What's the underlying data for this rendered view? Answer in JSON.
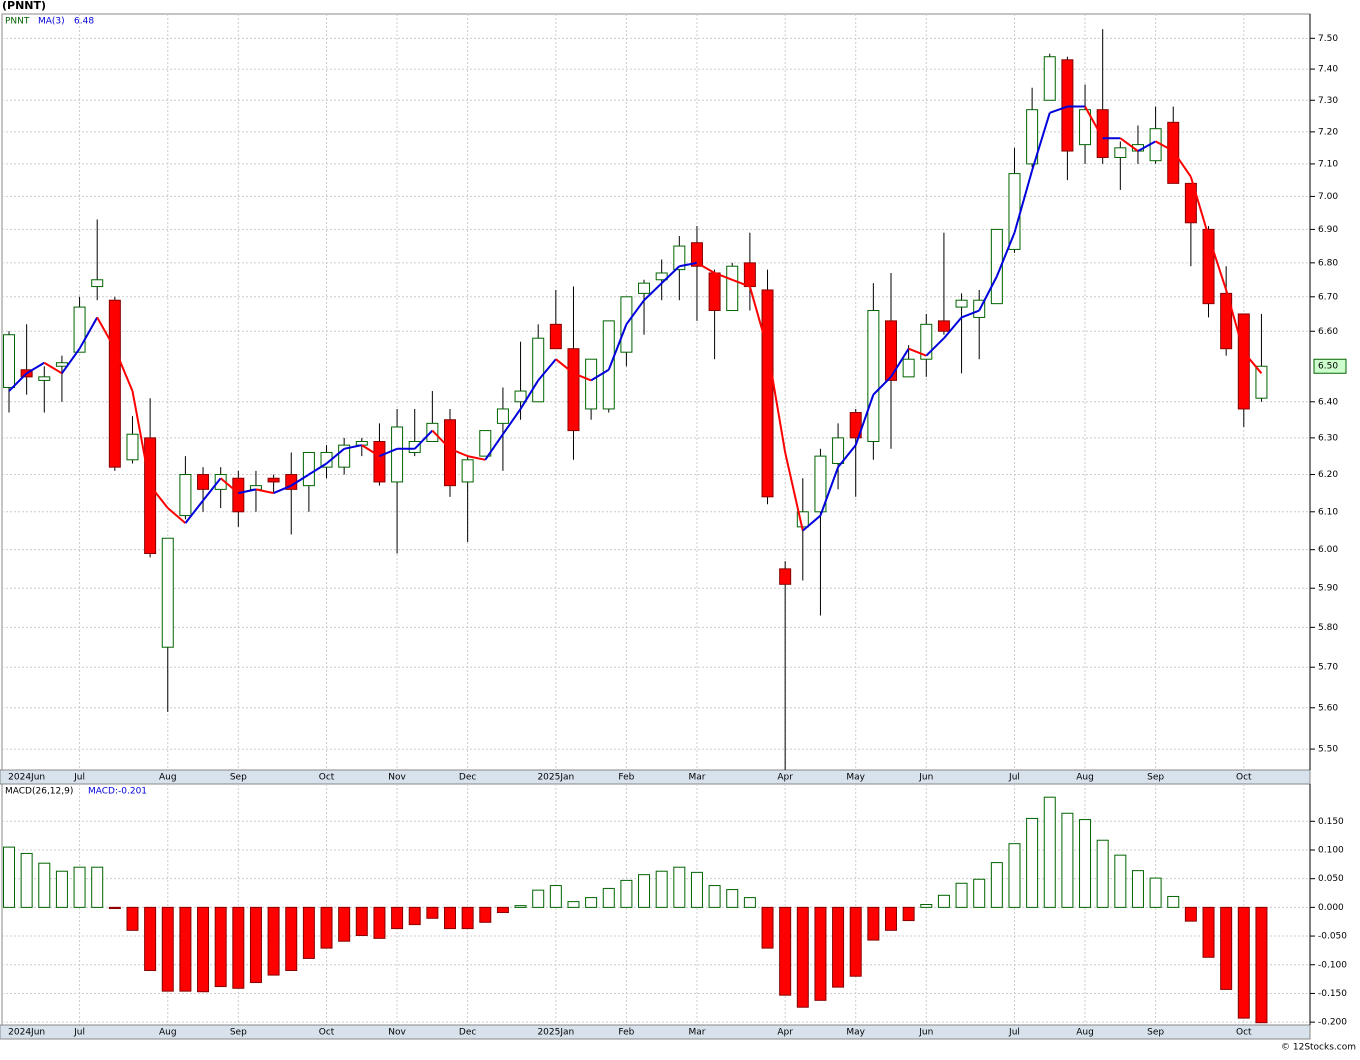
{
  "chart_data": [
    {
      "type": "candlestick",
      "title": "(PNNT)",
      "symbol": "PNNT",
      "categories": [
        null,
        "2024Jun",
        null,
        null,
        "Jul",
        null,
        null,
        null,
        null,
        "Aug",
        null,
        null,
        null,
        "Sep",
        null,
        null,
        null,
        null,
        "Oct",
        null,
        null,
        null,
        "Nov",
        null,
        null,
        null,
        "Dec",
        null,
        null,
        null,
        null,
        "2025Jan",
        null,
        null,
        null,
        "Feb",
        null,
        null,
        null,
        "Mar",
        null,
        null,
        null,
        null,
        "Apr",
        null,
        null,
        null,
        "May",
        null,
        null,
        null,
        "Jun",
        null,
        null,
        null,
        null,
        "Jul",
        null,
        null,
        null,
        "Aug",
        null,
        null,
        null,
        "Sep",
        null,
        null,
        null,
        null,
        "Oct",
        null
      ],
      "open": [
        6.44,
        6.49,
        6.46,
        6.5,
        6.54,
        6.73,
        6.69,
        6.24,
        6.3,
        5.75,
        6.09,
        6.2,
        6.16,
        6.19,
        6.16,
        6.19,
        6.2,
        6.17,
        6.22,
        6.22,
        6.28,
        6.29,
        6.18,
        6.26,
        6.29,
        6.35,
        6.18,
        6.25,
        6.34,
        6.4,
        6.4,
        6.62,
        6.55,
        6.38,
        6.38,
        6.54,
        6.71,
        6.75,
        6.78,
        6.86,
        6.77,
        6.66,
        6.8,
        6.72,
        5.95,
        6.06,
        6.1,
        6.23,
        6.37,
        6.29,
        6.63,
        6.47,
        6.52,
        6.63,
        6.67,
        6.64,
        6.68,
        6.84,
        7.1,
        7.3,
        7.43,
        7.16,
        7.27,
        7.12,
        7.14,
        7.11,
        7.23,
        7.04,
        6.9,
        6.71,
        6.65,
        6.41
      ],
      "high": [
        6.6,
        6.62,
        6.5,
        6.53,
        6.7,
        6.93,
        6.7,
        6.36,
        6.41,
        6.03,
        6.25,
        6.22,
        6.22,
        6.21,
        6.21,
        6.2,
        6.26,
        6.26,
        6.28,
        6.3,
        6.3,
        6.34,
        6.38,
        6.38,
        6.43,
        6.38,
        6.25,
        6.32,
        6.44,
        6.57,
        6.62,
        6.72,
        6.73,
        6.52,
        6.63,
        6.7,
        6.75,
        6.81,
        6.88,
        6.91,
        6.78,
        6.8,
        6.89,
        6.78,
        5.97,
        6.19,
        6.27,
        6.34,
        6.38,
        6.74,
        6.77,
        6.56,
        6.65,
        6.89,
        6.71,
        6.72,
        6.9,
        7.15,
        7.34,
        7.45,
        7.44,
        7.35,
        7.53,
        7.17,
        7.22,
        7.28,
        7.28,
        7.04,
        6.91,
        6.79,
        6.65,
        6.65
      ],
      "low": [
        6.37,
        6.42,
        6.37,
        6.4,
        6.54,
        6.69,
        6.21,
        6.23,
        5.98,
        5.59,
        6.08,
        6.1,
        6.11,
        6.06,
        6.1,
        6.15,
        6.04,
        6.1,
        6.19,
        6.2,
        6.25,
        6.17,
        5.99,
        6.25,
        6.29,
        6.14,
        6.02,
        6.25,
        6.21,
        6.35,
        6.4,
        6.55,
        6.24,
        6.35,
        6.37,
        6.5,
        6.59,
        6.69,
        6.69,
        6.63,
        6.52,
        6.66,
        6.66,
        6.12,
        5.45,
        5.92,
        5.83,
        6.16,
        6.14,
        6.24,
        6.27,
        6.47,
        6.47,
        6.59,
        6.48,
        6.52,
        6.68,
        6.83,
        7.09,
        7.3,
        7.05,
        7.1,
        7.1,
        7.02,
        7.1,
        7.1,
        7.04,
        6.79,
        6.64,
        6.53,
        6.33,
        6.4
      ],
      "close": [
        6.59,
        6.47,
        6.47,
        6.51,
        6.67,
        6.75,
        6.22,
        6.31,
        5.99,
        6.03,
        6.2,
        6.16,
        6.2,
        6.1,
        6.17,
        6.18,
        6.16,
        6.26,
        6.26,
        6.28,
        6.29,
        6.18,
        6.33,
        6.29,
        6.34,
        6.17,
        6.24,
        6.32,
        6.38,
        6.43,
        6.58,
        6.55,
        6.32,
        6.52,
        6.63,
        6.7,
        6.74,
        6.77,
        6.85,
        6.79,
        6.66,
        6.79,
        6.73,
        6.14,
        5.91,
        6.1,
        6.25,
        6.3,
        6.3,
        6.66,
        6.46,
        6.52,
        6.62,
        6.6,
        6.69,
        6.69,
        6.9,
        7.07,
        7.27,
        7.44,
        7.14,
        7.27,
        7.12,
        7.15,
        7.16,
        7.21,
        7.04,
        6.92,
        6.68,
        6.55,
        6.38,
        6.5
      ],
      "up_color": "#006400",
      "down_color": "#ff0000",
      "ma": {
        "name": "MA(3)",
        "value": 6.48,
        "up_color": "#0000dd",
        "down_color": "#ff0000",
        "values": [
          6.43,
          6.48,
          6.51,
          6.48,
          6.55,
          6.64,
          6.55,
          6.43,
          6.17,
          6.11,
          6.07,
          6.13,
          6.19,
          6.15,
          6.16,
          6.15,
          6.17,
          6.2,
          6.23,
          6.27,
          6.28,
          6.25,
          6.27,
          6.27,
          6.32,
          6.27,
          6.25,
          6.24,
          6.31,
          6.38,
          6.46,
          6.52,
          6.48,
          6.46,
          6.49,
          6.62,
          6.69,
          6.74,
          6.79,
          6.8,
          6.77,
          6.75,
          6.73,
          6.55,
          6.26,
          6.05,
          6.09,
          6.22,
          6.28,
          6.42,
          6.47,
          6.55,
          6.53,
          6.58,
          6.64,
          6.66,
          6.76,
          6.89,
          7.08,
          7.26,
          7.28,
          7.28,
          7.18,
          7.18,
          7.14,
          7.17,
          7.14,
          7.06,
          6.88,
          6.72,
          6.54,
          6.48
        ]
      },
      "log_scale": true,
      "ylim": [
        5.45,
        7.58
      ],
      "yticks": [
        {
          "value": 5.5,
          "label": "5.50"
        },
        {
          "value": 5.6,
          "label": "5.60"
        },
        {
          "value": 5.7,
          "label": "5.70"
        },
        {
          "value": 5.8,
          "label": "5.80"
        },
        {
          "value": 5.9,
          "label": "5.90"
        },
        {
          "value": 6.0,
          "label": "6.00"
        },
        {
          "value": 6.1,
          "label": "6.10"
        },
        {
          "value": 6.2,
          "label": "6.20"
        },
        {
          "value": 6.3,
          "label": "6.30"
        },
        {
          "value": 6.4,
          "label": "6.40"
        },
        {
          "value": 6.6,
          "label": "6.60"
        },
        {
          "value": 6.7,
          "label": "6.70"
        },
        {
          "value": 6.8,
          "label": "6.80"
        },
        {
          "value": 6.9,
          "label": "6.90"
        },
        {
          "value": 7.0,
          "label": "7.00"
        },
        {
          "value": 7.1,
          "label": "7.10"
        },
        {
          "value": 7.2,
          "label": "7.20"
        },
        {
          "value": 7.3,
          "label": "7.30"
        },
        {
          "value": 7.4,
          "label": "7.40"
        },
        {
          "value": 7.5,
          "label": "7.50"
        }
      ],
      "price_marker": {
        "value": 6.5,
        "label": "6.50"
      },
      "grid": true
    },
    {
      "type": "bar",
      "title": "MACD(26,12,9)",
      "legend": "MACD:-0.201",
      "values": [
        0.105,
        0.094,
        0.077,
        0.063,
        0.07,
        0.07,
        -0.002,
        -0.04,
        -0.11,
        -0.146,
        -0.146,
        -0.147,
        -0.138,
        -0.141,
        -0.131,
        -0.118,
        -0.11,
        -0.089,
        -0.071,
        -0.059,
        -0.049,
        -0.054,
        -0.037,
        -0.03,
        -0.019,
        -0.037,
        -0.037,
        -0.026,
        -0.009,
        0.003,
        0.03,
        0.038,
        0.01,
        0.017,
        0.033,
        0.047,
        0.057,
        0.063,
        0.07,
        0.061,
        0.038,
        0.031,
        0.017,
        -0.071,
        -0.153,
        -0.174,
        -0.162,
        -0.139,
        -0.12,
        -0.057,
        -0.04,
        -0.023,
        0.005,
        0.021,
        0.042,
        0.049,
        0.078,
        0.111,
        0.155,
        0.192,
        0.164,
        0.153,
        0.117,
        0.091,
        0.064,
        0.051,
        0.019,
        -0.024,
        -0.087,
        -0.143,
        -0.193,
        -0.201
      ],
      "up_color": "#006400",
      "down_color": "#ff0000",
      "ylim": [
        -0.205,
        0.215
      ],
      "yticks": [
        {
          "value": -0.2,
          "label": "-0.200"
        },
        {
          "value": -0.15,
          "label": "-0.150"
        },
        {
          "value": -0.1,
          "label": "-0.100"
        },
        {
          "value": -0.05,
          "label": "-0.050"
        },
        {
          "value": 0,
          "label": "0.000"
        },
        {
          "value": 0.05,
          "label": "0.050"
        },
        {
          "value": 0.1,
          "label": "0.100"
        },
        {
          "value": 0.15,
          "label": "0.150"
        }
      ],
      "grid": true
    }
  ],
  "footer": "© 12Stocks.com"
}
